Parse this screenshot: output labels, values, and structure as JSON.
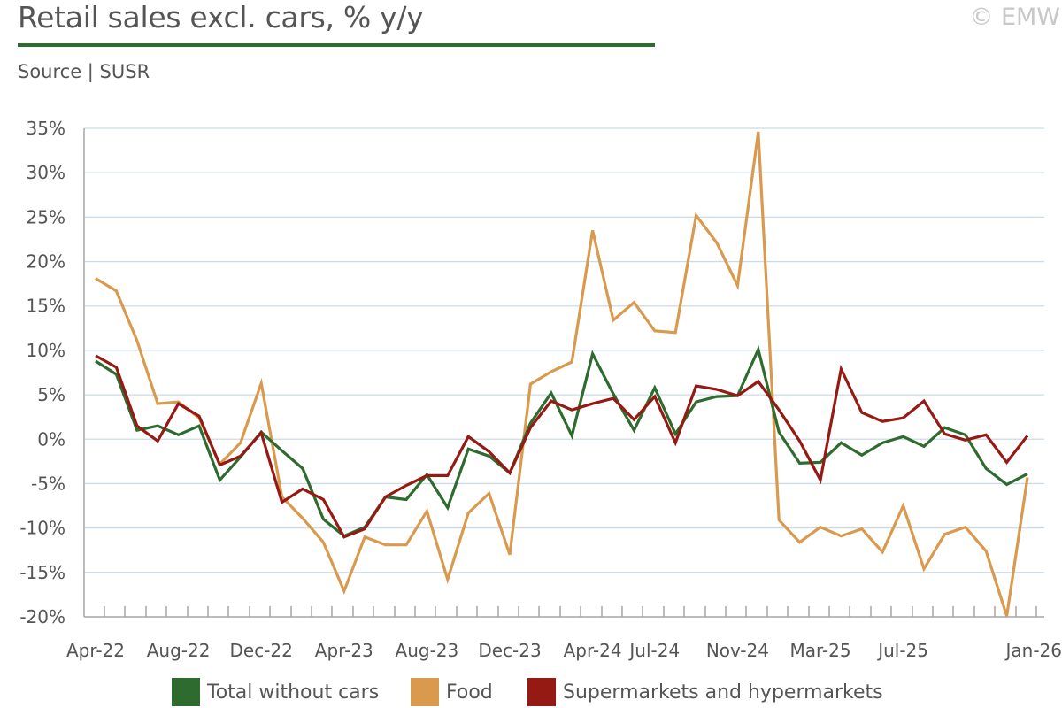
{
  "header": {
    "title": "Retail sales excl. cars, % y/y",
    "copyright": "© EMW",
    "source": "Source | SUSR"
  },
  "colors": {
    "total": "#2e6b2e",
    "food": "#d99a4e",
    "supermarkets": "#951a14",
    "grid": "#c9dcea",
    "axis": "#a6a6a6",
    "accent": "#2e6b2e"
  },
  "chart_data": {
    "type": "line",
    "title": "Retail sales excl. cars, % y/y",
    "xlabel": "",
    "ylabel": "",
    "ylim": [
      -20,
      35
    ],
    "yticks": [
      35,
      30,
      25,
      20,
      15,
      10,
      5,
      0,
      -5,
      -10,
      -15,
      -20
    ],
    "ytick_labels": [
      "35%",
      "30%",
      "25%",
      "20%",
      "15%",
      "10%",
      "5%",
      "0%",
      "-5%",
      "-10%",
      "-15%",
      "-20%"
    ],
    "x": [
      "Apr-22",
      "May-22",
      "Jun-22",
      "Jul-22",
      "Aug-22",
      "Sep-22",
      "Oct-22",
      "Nov-22",
      "Dec-22",
      "Jan-23",
      "Feb-23",
      "Mar-23",
      "Apr-23",
      "May-23",
      "Jun-23",
      "Jul-23",
      "Aug-23",
      "Sep-23",
      "Oct-23",
      "Nov-23",
      "Dec-23",
      "Jan-24",
      "Feb-24",
      "Mar-24",
      "Apr-24",
      "May-24",
      "Jun-24",
      "Jul-24",
      "Aug-24",
      "Sep-24",
      "Oct-24",
      "Nov-24",
      "Dec-24",
      "Jan-25",
      "Feb-25",
      "Mar-25",
      "Apr-25",
      "May-25",
      "Jun-25",
      "Jul-25",
      "Aug-25",
      "Sep-25",
      "Oct-25",
      "Nov-25",
      "Dec-25",
      "Jan-26"
    ],
    "x_tick_labels": [
      {
        "index": 0,
        "label": "Apr-22"
      },
      {
        "index": 4,
        "label": "Aug-22"
      },
      {
        "index": 8,
        "label": "Dec-22"
      },
      {
        "index": 12,
        "label": "Apr-23"
      },
      {
        "index": 16,
        "label": "Aug-23"
      },
      {
        "index": 20,
        "label": "Dec-23"
      },
      {
        "index": 24,
        "label": "Apr-24"
      },
      {
        "index": 27,
        "label": "Jul-24"
      },
      {
        "index": 31,
        "label": "Nov-24"
      },
      {
        "index": 35,
        "label": "Mar-25"
      },
      {
        "index": 39,
        "label": "Jul-25"
      },
      {
        "index": 45,
        "label": "Jan-26"
      }
    ],
    "series": [
      {
        "name": "Total without cars",
        "color": "#2e6b2e",
        "values": [
          8.8,
          7.3,
          1.0,
          1.5,
          0.5,
          1.5,
          -4.6,
          -2.0,
          0.8,
          -1.3,
          -3.3,
          -9.0,
          -10.9,
          -9.9,
          -6.5,
          -6.8,
          -4.0,
          -7.7,
          -1.1,
          -1.9,
          -3.8,
          1.8,
          5.2,
          0.4,
          9.6,
          5.1,
          1.0,
          5.8,
          0.6,
          4.2,
          4.8,
          4.9,
          10.1,
          0.8,
          -2.7,
          -2.6,
          -0.4,
          -1.8,
          -0.4,
          0.3,
          -0.8,
          1.3,
          0.5,
          -3.3,
          -5.1,
          -3.9
        ]
      },
      {
        "name": "Food",
        "color": "#d99a4e",
        "values": [
          18.1,
          16.7,
          11.1,
          4.0,
          4.2,
          2.4,
          -2.8,
          -0.4,
          6.3,
          -6.5,
          -8.9,
          -11.6,
          -17.1,
          -11.0,
          -11.9,
          -11.9,
          -8.1,
          -15.8,
          -8.3,
          -6.1,
          -13.0,
          6.2,
          7.6,
          8.7,
          23.5,
          13.4,
          15.4,
          12.2,
          12.0,
          25.2,
          22.1,
          17.3,
          34.6,
          -9.1,
          -11.6,
          -9.9,
          -10.9,
          -10.1,
          -12.7,
          -7.5,
          -14.6,
          -10.7,
          -9.9,
          -12.6,
          -19.9,
          -4.3
        ]
      },
      {
        "name": "Supermarkets and hypermarkets",
        "color": "#951a14",
        "values": [
          9.4,
          8.1,
          1.5,
          -0.2,
          4.0,
          2.6,
          -2.9,
          -1.9,
          0.7,
          -7.1,
          -5.6,
          -6.8,
          -11.0,
          -10.1,
          -6.5,
          -5.2,
          -4.1,
          -4.1,
          0.3,
          -1.4,
          -3.8,
          1.3,
          4.3,
          3.3,
          4.0,
          4.6,
          2.2,
          4.8,
          -0.4,
          6.0,
          5.6,
          4.9,
          6.5,
          3.3,
          -0.2,
          -4.6,
          7.9,
          3.0,
          2.0,
          2.4,
          4.3,
          0.6,
          -0.1,
          0.5,
          -2.6,
          0.4
        ]
      }
    ],
    "legend": [
      "Total without cars",
      "Food",
      "Supermarkets and hypermarkets"
    ],
    "legend_position": "bottom",
    "grid": true
  }
}
